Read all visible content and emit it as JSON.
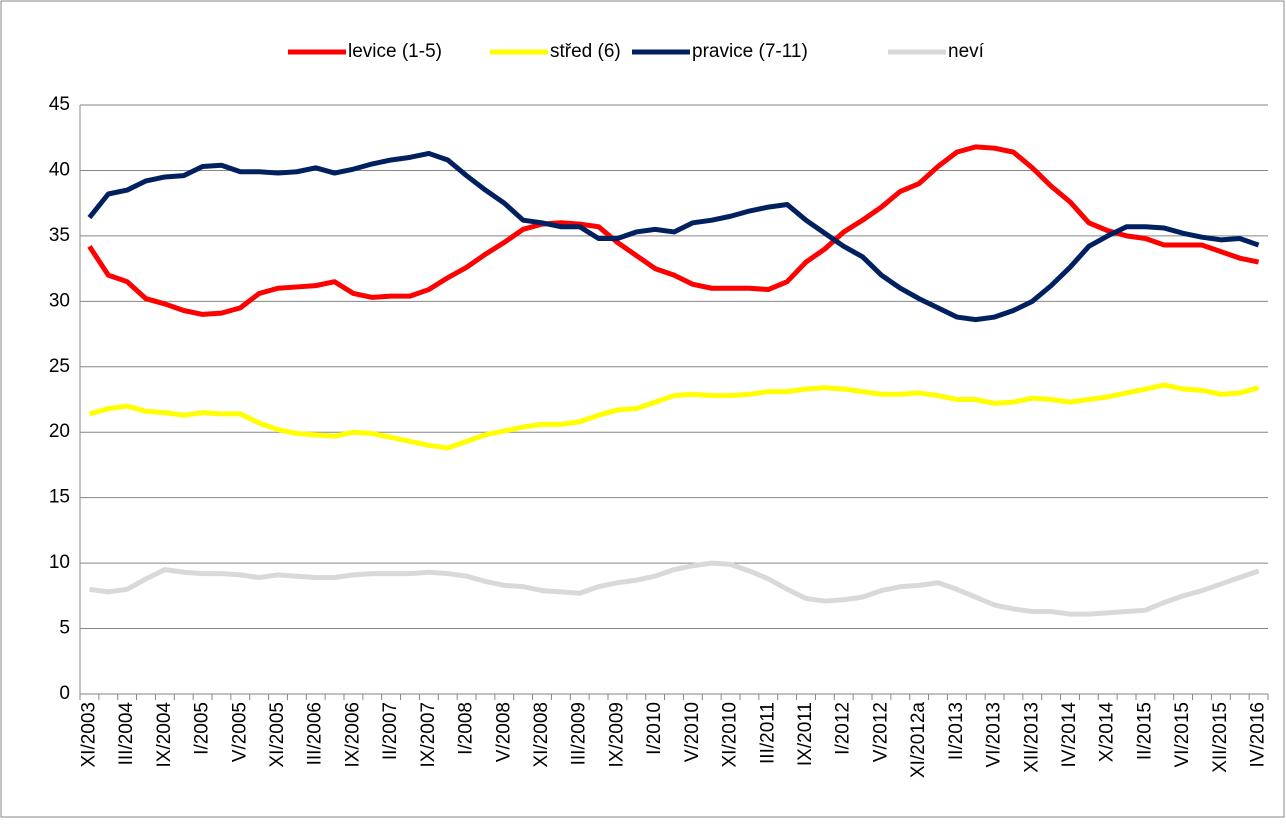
{
  "chart_data": {
    "type": "line",
    "categories": [
      "XI/2003",
      null,
      "III/2004",
      null,
      "IX/2004",
      null,
      "I/2005",
      null,
      "V/2005",
      null,
      "XI/2005",
      null,
      "III/2006",
      null,
      "IX/2006",
      null,
      "II/2007",
      null,
      "IX/2007",
      null,
      "I/2008",
      null,
      "V/2008",
      null,
      "XI/2008",
      null,
      "III/2009",
      null,
      "IX/2009",
      null,
      "I/2010",
      null,
      "V/2010",
      null,
      "XI/2010",
      null,
      "III/2011",
      null,
      "IX/2011",
      null,
      "I/2012",
      null,
      "V/2012",
      null,
      "XI/2012a",
      null,
      "II/2013",
      null,
      "VI/2013",
      null,
      "XII/2013",
      null,
      "IV/2014",
      null,
      "X/2014",
      null,
      "II/2015",
      null,
      "VI/2015",
      null,
      "XII/2015",
      null,
      "IV/2016"
    ],
    "series": [
      {
        "name": "levice (1-5)",
        "color": "#ff0000",
        "values": [
          34.2,
          32.0,
          31.5,
          30.2,
          29.8,
          29.3,
          29.0,
          29.1,
          29.5,
          30.6,
          31.0,
          31.1,
          31.2,
          31.5,
          30.6,
          30.3,
          30.4,
          30.4,
          30.9,
          31.8,
          32.6,
          33.6,
          34.5,
          35.5,
          35.9,
          36.0,
          35.9,
          35.7,
          34.5,
          33.5,
          32.5,
          32.0,
          31.3,
          31.0,
          31.0,
          31.0,
          30.9,
          31.5,
          33.0,
          34.0,
          35.3,
          36.2,
          37.2,
          38.4,
          39.0,
          40.3,
          41.4,
          41.8,
          41.7,
          41.4,
          40.2,
          38.8,
          37.6,
          36.0,
          35.4,
          35.0,
          34.8,
          34.3,
          34.3,
          34.3,
          33.8,
          33.3,
          33.0
        ]
      },
      {
        "name": "střed (6)",
        "color": "#ffff00",
        "values": [
          21.4,
          21.8,
          22.0,
          21.6,
          21.5,
          21.3,
          21.5,
          21.4,
          21.4,
          20.7,
          20.2,
          19.9,
          19.8,
          19.7,
          20.0,
          19.9,
          19.6,
          19.3,
          19.0,
          18.8,
          19.3,
          19.8,
          20.1,
          20.4,
          20.6,
          20.6,
          20.8,
          21.3,
          21.7,
          21.8,
          22.3,
          22.8,
          22.9,
          22.8,
          22.8,
          22.9,
          23.1,
          23.1,
          23.3,
          23.4,
          23.3,
          23.1,
          22.9,
          22.9,
          23.0,
          22.8,
          22.5,
          22.5,
          22.2,
          22.3,
          22.6,
          22.5,
          22.3,
          22.5,
          22.7,
          23.0,
          23.3,
          23.6,
          23.3,
          23.2,
          22.9,
          23.0,
          23.4
        ]
      },
      {
        "name": "pravice (7-11)",
        "color": "#002060",
        "values": [
          36.4,
          38.2,
          38.5,
          39.2,
          39.5,
          39.6,
          40.3,
          40.4,
          39.9,
          39.9,
          39.8,
          39.9,
          40.2,
          39.8,
          40.1,
          40.5,
          40.8,
          41.0,
          41.3,
          40.8,
          39.6,
          38.5,
          37.5,
          36.2,
          36.0,
          35.7,
          35.7,
          34.8,
          34.8,
          35.3,
          35.5,
          35.3,
          36.0,
          36.2,
          36.5,
          36.9,
          37.2,
          37.4,
          36.2,
          35.2,
          34.2,
          33.4,
          32.0,
          31.0,
          30.2,
          29.5,
          28.8,
          28.6,
          28.8,
          29.3,
          30.0,
          31.2,
          32.6,
          34.2,
          35.0,
          35.7,
          35.7,
          35.6,
          35.2,
          34.9,
          34.7,
          34.8,
          34.3
        ]
      },
      {
        "name": "neví",
        "color": "#d9d9d9",
        "values": [
          8.0,
          7.8,
          8.0,
          8.8,
          9.5,
          9.3,
          9.2,
          9.2,
          9.1,
          8.9,
          9.1,
          9.0,
          8.9,
          8.9,
          9.1,
          9.2,
          9.2,
          9.2,
          9.3,
          9.2,
          9.0,
          8.6,
          8.3,
          8.2,
          7.9,
          7.8,
          7.7,
          8.2,
          8.5,
          8.7,
          9.0,
          9.5,
          9.8,
          10.0,
          9.9,
          9.4,
          8.8,
          8.0,
          7.3,
          7.1,
          7.2,
          7.4,
          7.9,
          8.2,
          8.3,
          8.5,
          8.0,
          7.4,
          6.8,
          6.5,
          6.3,
          6.3,
          6.1,
          6.1,
          6.2,
          6.3,
          6.4,
          7.0,
          7.5,
          7.9,
          8.4,
          8.9,
          9.4
        ]
      }
    ],
    "ylim": [
      0,
      45
    ],
    "yticks": [
      0,
      5,
      10,
      15,
      20,
      25,
      30,
      35,
      40,
      45
    ],
    "grid": true,
    "legend": "top"
  }
}
